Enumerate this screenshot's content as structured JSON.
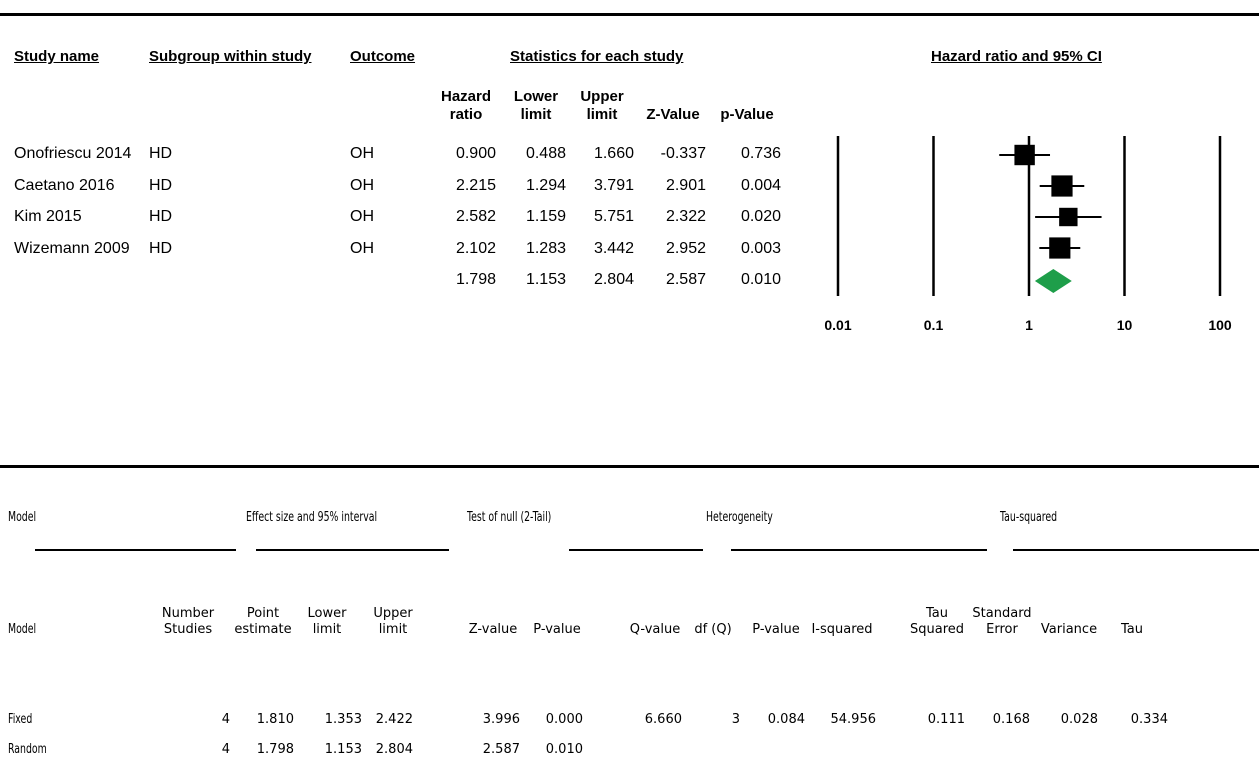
{
  "forest": {
    "headers": {
      "study_name": "Study name",
      "subgroup": "Subgroup within study",
      "outcome": "Outcome",
      "stats": "Statistics for each study",
      "plot": "Hazard ratio and 95% CI"
    },
    "columns": {
      "hr": [
        "Hazard",
        "ratio"
      ],
      "lower": [
        "Lower",
        "limit"
      ],
      "upper": [
        "Upper",
        "limit"
      ],
      "z": "Z-Value",
      "p": "p-Value"
    },
    "rows": [
      {
        "study": "Onofriescu 2014",
        "subgroup": "HD",
        "outcome": "OH",
        "hr": "0.900",
        "lower": "0.488",
        "upper": "1.660",
        "z": "-0.337",
        "p": "0.736"
      },
      {
        "study": "Caetano 2016",
        "subgroup": "HD",
        "outcome": "OH",
        "hr": "2.215",
        "lower": "1.294",
        "upper": "3.791",
        "z": "2.901",
        "p": "0.004"
      },
      {
        "study": "Kim 2015",
        "subgroup": "HD",
        "outcome": "OH",
        "hr": "2.582",
        "lower": "1.159",
        "upper": "5.751",
        "z": "2.322",
        "p": "0.020"
      },
      {
        "study": "Wizemann 2009",
        "subgroup": "HD",
        "outcome": "OH",
        "hr": "2.102",
        "lower": "1.283",
        "upper": "3.442",
        "z": "2.952",
        "p": "0.003"
      }
    ],
    "summary": {
      "hr": "1.798",
      "lower": "1.153",
      "upper": "2.804",
      "z": "2.587",
      "p": "0.010"
    },
    "ticks": [
      "0.01",
      "0.1",
      "1",
      "10",
      "100"
    ]
  },
  "chart_data": {
    "type": "scatter",
    "subtype": "forest",
    "title": "Hazard ratio and 95% CI",
    "x_scale": "log",
    "xlim": [
      0.01,
      100
    ],
    "x_ticks": [
      0.01,
      0.1,
      1,
      10,
      100
    ],
    "categories": [
      "Onofriescu 2014",
      "Caetano 2016",
      "Kim 2015",
      "Wizemann 2009"
    ],
    "studies": [
      {
        "name": "Onofriescu 2014",
        "hr": 0.9,
        "lower": 0.488,
        "upper": 1.66,
        "weight": 0.8
      },
      {
        "name": "Caetano 2016",
        "hr": 2.215,
        "lower": 1.294,
        "upper": 3.791,
        "weight": 0.9
      },
      {
        "name": "Kim 2015",
        "hr": 2.582,
        "lower": 1.159,
        "upper": 5.751,
        "weight": 0.55
      },
      {
        "name": "Wizemann 2009",
        "hr": 2.102,
        "lower": 1.283,
        "upper": 3.442,
        "weight": 0.9
      }
    ],
    "summary": {
      "hr": 1.798,
      "lower": 1.153,
      "upper": 2.804
    },
    "colors": {
      "study": "#000000",
      "summary": "#1e9e4a"
    }
  },
  "model_table": {
    "group_headers": {
      "model": "Model",
      "effect": "Effect size and 95% interval",
      "null": "Test of null (2-Tail)",
      "heterogeneity": "Heterogeneity",
      "tau": "Tau-squared"
    },
    "columns": {
      "model": "Model",
      "number": [
        "Number",
        "Studies"
      ],
      "point": [
        "Point",
        "estimate"
      ],
      "lower": [
        "Lower",
        "limit"
      ],
      "upper": [
        "Upper",
        "limit"
      ],
      "z": "Z-value",
      "p": "P-value",
      "q": "Q-value",
      "df": "df (Q)",
      "hp": "P-value",
      "i2": "I-squared",
      "tau2": [
        "Tau",
        "Squared"
      ],
      "se": [
        "Standard",
        "Error"
      ],
      "variance": "Variance",
      "tau": "Tau"
    },
    "rows": [
      {
        "model": "Fixed",
        "number": "4",
        "point": "1.810",
        "lower": "1.353",
        "upper": "2.422",
        "z": "3.996",
        "p": "0.000",
        "q": "6.660",
        "df": "3",
        "hp": "0.084",
        "i2": "54.956",
        "tau2": "0.111",
        "se": "0.168",
        "variance": "0.028",
        "tau": "0.334"
      },
      {
        "model": "Random",
        "number": "4",
        "point": "1.798",
        "lower": "1.153",
        "upper": "2.804",
        "z": "2.587",
        "p": "0.010"
      }
    ]
  }
}
